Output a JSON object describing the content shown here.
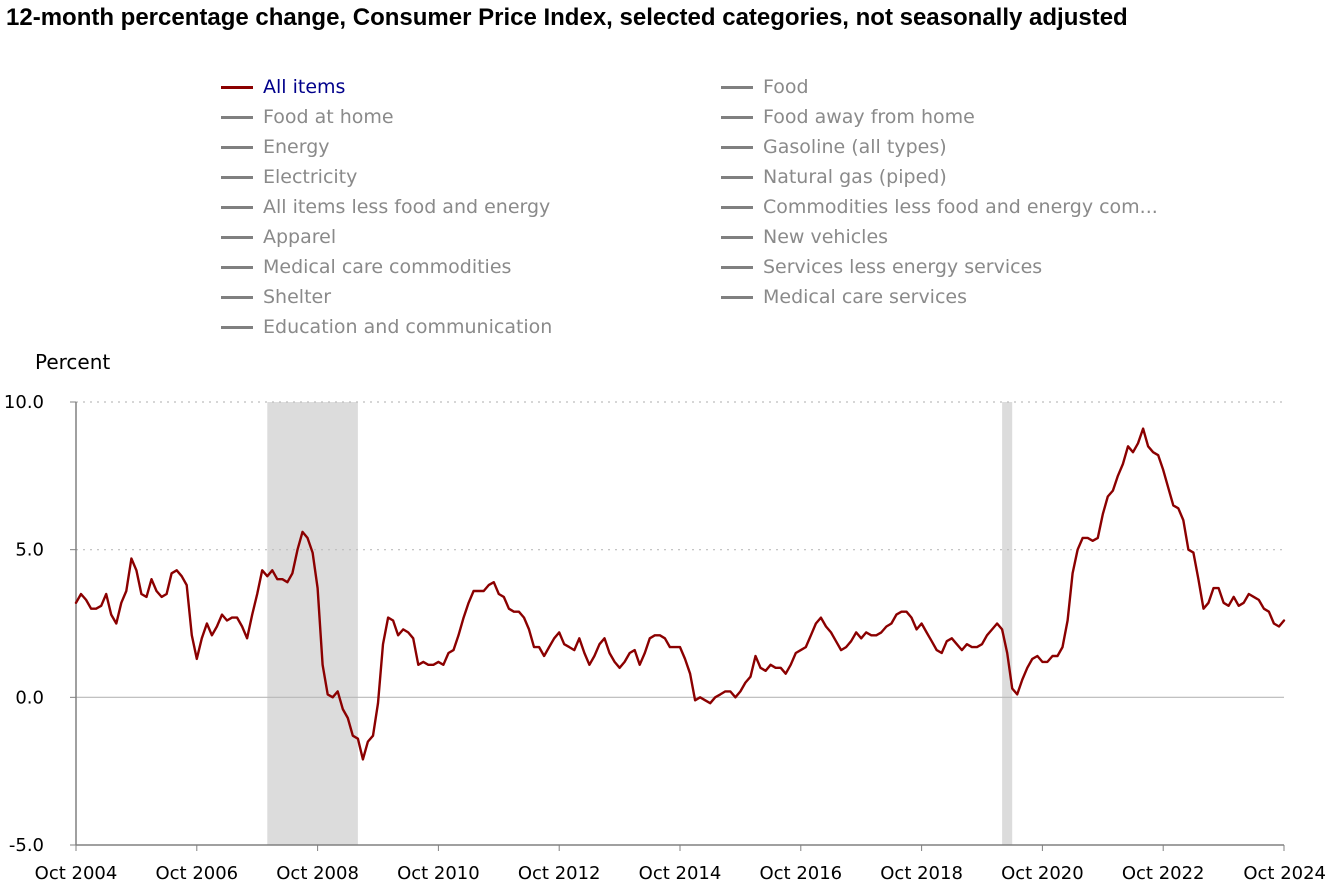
{
  "title": "12-month percentage change, Consumer Price Index, selected categories, not seasonally adjusted",
  "legend": [
    {
      "label": "All items",
      "active": true
    },
    {
      "label": "Food",
      "active": false
    },
    {
      "label": "Food at home",
      "active": false
    },
    {
      "label": "Food away from home",
      "active": false
    },
    {
      "label": "Energy",
      "active": false
    },
    {
      "label": "Gasoline (all types)",
      "active": false
    },
    {
      "label": "Electricity",
      "active": false
    },
    {
      "label": "Natural gas (piped)",
      "active": false
    },
    {
      "label": "All items less food and energy",
      "active": false
    },
    {
      "label": "Commodities less food and energy com...",
      "active": false
    },
    {
      "label": "Apparel",
      "active": false
    },
    {
      "label": "New vehicles",
      "active": false
    },
    {
      "label": "Medical care commodities",
      "active": false
    },
    {
      "label": "Services less energy services",
      "active": false
    },
    {
      "label": "Shelter",
      "active": false
    },
    {
      "label": "Medical care services",
      "active": false
    },
    {
      "label": "Education and communication",
      "active": false
    }
  ],
  "colors": {
    "series": "#8b0000",
    "legend_active_text": "#00008b",
    "legend_inactive": "#8a8a8a",
    "recession": "#dcdcdc"
  },
  "chart_data": {
    "type": "line",
    "ylabel": "Percent",
    "ylim": [
      -5,
      10
    ],
    "y_ticks": [
      "10.0",
      "5.0",
      "0.0",
      "-5.0"
    ],
    "x_ticks": [
      "Oct 2004",
      "Oct 2006",
      "Oct 2008",
      "Oct 2010",
      "Oct 2012",
      "Oct 2014",
      "Oct 2016",
      "Oct 2018",
      "Oct 2020",
      "Oct 2022",
      "Oct 2024"
    ],
    "x_range": [
      "2004-10",
      "2024-10"
    ],
    "grid": "horizontal dotted",
    "shaded_periods": [
      [
        "2007-12",
        "2009-06"
      ],
      [
        "2020-02",
        "2020-04"
      ]
    ],
    "series": [
      {
        "name": "All items",
        "x_start": "2004-10",
        "values": [
          3.2,
          3.5,
          3.3,
          3.0,
          3.0,
          3.1,
          3.5,
          2.8,
          2.5,
          3.2,
          3.6,
          4.7,
          4.3,
          3.5,
          3.4,
          4.0,
          3.6,
          3.4,
          3.5,
          4.2,
          4.3,
          4.1,
          3.8,
          2.1,
          1.3,
          2.0,
          2.5,
          2.1,
          2.4,
          2.8,
          2.6,
          2.7,
          2.7,
          2.4,
          2.0,
          2.8,
          3.5,
          4.3,
          4.1,
          4.3,
          4.0,
          4.0,
          3.9,
          4.2,
          5.0,
          5.6,
          5.4,
          4.9,
          3.7,
          1.1,
          0.1,
          0.0,
          0.2,
          -0.4,
          -0.7,
          -1.3,
          -1.4,
          -2.1,
          -1.5,
          -1.3,
          -0.2,
          1.8,
          2.7,
          2.6,
          2.1,
          2.3,
          2.2,
          2.0,
          1.1,
          1.2,
          1.1,
          1.1,
          1.2,
          1.1,
          1.5,
          1.6,
          2.1,
          2.7,
          3.2,
          3.6,
          3.6,
          3.6,
          3.8,
          3.9,
          3.5,
          3.4,
          3.0,
          2.9,
          2.9,
          2.7,
          2.3,
          1.7,
          1.7,
          1.4,
          1.7,
          2.0,
          2.2,
          1.8,
          1.7,
          1.6,
          2.0,
          1.5,
          1.1,
          1.4,
          1.8,
          2.0,
          1.5,
          1.2,
          1.0,
          1.2,
          1.5,
          1.6,
          1.1,
          1.5,
          2.0,
          2.1,
          2.1,
          2.0,
          1.7,
          1.7,
          1.7,
          1.3,
          0.8,
          -0.1,
          0.0,
          -0.1,
          -0.2,
          0.0,
          0.1,
          0.2,
          0.2,
          0.0,
          0.2,
          0.5,
          0.7,
          1.4,
          1.0,
          0.9,
          1.1,
          1.0,
          1.0,
          0.8,
          1.1,
          1.5,
          1.6,
          1.7,
          2.1,
          2.5,
          2.7,
          2.4,
          2.2,
          1.9,
          1.6,
          1.7,
          1.9,
          2.2,
          2.0,
          2.2,
          2.1,
          2.1,
          2.2,
          2.4,
          2.5,
          2.8,
          2.9,
          2.9,
          2.7,
          2.3,
          2.5,
          2.2,
          1.9,
          1.6,
          1.5,
          1.9,
          2.0,
          1.8,
          1.6,
          1.8,
          1.7,
          1.7,
          1.8,
          2.1,
          2.3,
          2.5,
          2.3,
          1.5,
          0.3,
          0.1,
          0.6,
          1.0,
          1.3,
          1.4,
          1.2,
          1.2,
          1.4,
          1.4,
          1.7,
          2.6,
          4.2,
          5.0,
          5.4,
          5.4,
          5.3,
          5.4,
          6.2,
          6.8,
          7.0,
          7.5,
          7.9,
          8.5,
          8.3,
          8.6,
          9.1,
          8.5,
          8.3,
          8.2,
          7.7,
          7.1,
          6.5,
          6.4,
          6.0,
          5.0,
          4.9,
          4.0,
          3.0,
          3.2,
          3.7,
          3.7,
          3.2,
          3.1,
          3.4,
          3.1,
          3.2,
          3.5,
          3.4,
          3.3,
          3.0,
          2.9,
          2.5,
          2.4,
          2.6
        ]
      }
    ]
  }
}
